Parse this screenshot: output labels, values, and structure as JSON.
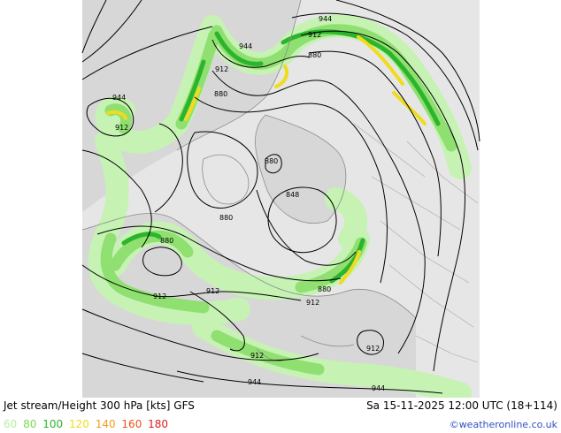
{
  "header": {
    "title": "Jet stream/Height 300 hPa [kts] GFS",
    "valid_time": "Sa 15-11-2025 12:00 UTC (18+114)"
  },
  "legend": {
    "items": [
      {
        "label": "60",
        "color": "#b4f0a0"
      },
      {
        "label": "80",
        "color": "#78dc50"
      },
      {
        "label": "100",
        "color": "#2db42d"
      },
      {
        "label": "120",
        "color": "#f0dc1e"
      },
      {
        "label": "140",
        "color": "#f0a01e"
      },
      {
        "label": "160",
        "color": "#f0501e"
      },
      {
        "label": "180",
        "color": "#dc1e1e"
      }
    ]
  },
  "credit": "©weatheronline.co.uk",
  "contour_labels": [
    "944",
    "912",
    "944",
    "912",
    "880",
    "944",
    "912",
    "880",
    "880",
    "848",
    "880",
    "880",
    "912",
    "912",
    "880",
    "912",
    "912",
    "944",
    "912",
    "944"
  ],
  "colors": {
    "sea": "#dcdcdc",
    "land": "#e8e8e8",
    "jet_60": "#c6f2b4",
    "jet_80": "#8fe070",
    "jet_100": "#2db42d",
    "jet_120": "#f0dc1e",
    "jet_140": "#f0a01e",
    "contour": "#000000",
    "coast": "#909090",
    "border": "#a0a0a0"
  }
}
